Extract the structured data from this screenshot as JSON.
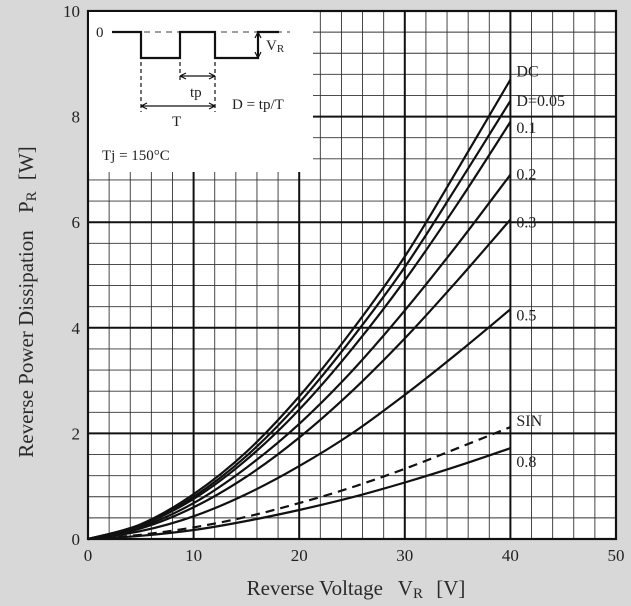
{
  "chart_data": {
    "type": "line",
    "xlabel_parts": [
      "Reverse Voltage",
      "V",
      "R",
      "[V]"
    ],
    "ylabel_parts": [
      "Reverse Power Dissipation",
      "P",
      "R",
      "[W]"
    ],
    "xlim": [
      0,
      50
    ],
    "ylim": [
      0,
      10
    ],
    "x_major_ticks": [
      0,
      10,
      20,
      30,
      40,
      50
    ],
    "y_major_ticks": [
      0,
      2,
      4,
      6,
      8,
      10
    ],
    "x_tick_labels": [
      "0",
      "10",
      "20",
      "30",
      "40",
      "50"
    ],
    "y_tick_labels": [
      "0",
      "2",
      "4",
      "6",
      "8",
      "10"
    ],
    "grid": true,
    "x": [
      0,
      5,
      10,
      15,
      20,
      25,
      30,
      35,
      40
    ],
    "series": [
      {
        "name": "DC",
        "dashed": false,
        "values": [
          0,
          0.28,
          0.85,
          1.65,
          2.7,
          3.95,
          5.35,
          7.0,
          8.7
        ]
      },
      {
        "name": "D=0.05",
        "dashed": false,
        "values": [
          0,
          0.27,
          0.8,
          1.57,
          2.58,
          3.8,
          5.15,
          6.7,
          8.3
        ]
      },
      {
        "name": "0.1",
        "dashed": false,
        "values": [
          0,
          0.26,
          0.76,
          1.5,
          2.45,
          3.6,
          4.9,
          6.35,
          7.9
        ]
      },
      {
        "name": "0.2",
        "dashed": false,
        "values": [
          0,
          0.23,
          0.68,
          1.35,
          2.18,
          3.18,
          4.33,
          5.58,
          6.9
        ]
      },
      {
        "name": "0.3",
        "dashed": false,
        "values": [
          0,
          0.2,
          0.6,
          1.18,
          1.92,
          2.8,
          3.8,
          4.9,
          6.05
        ]
      },
      {
        "name": "0.5",
        "dashed": false,
        "values": [
          0,
          0.15,
          0.43,
          0.85,
          1.38,
          2.0,
          2.73,
          3.52,
          4.35
        ]
      },
      {
        "name": "SIN",
        "dashed": true,
        "values": [
          0,
          0.08,
          0.22,
          0.42,
          0.68,
          0.98,
          1.33,
          1.72,
          2.12
        ]
      },
      {
        "name": "0.8",
        "dashed": false,
        "values": [
          0,
          0.06,
          0.17,
          0.34,
          0.55,
          0.79,
          1.07,
          1.38,
          1.72
        ]
      }
    ]
  },
  "inset": {
    "zero_label": "0",
    "vr_label": [
      "V",
      "R"
    ],
    "tp_label": "tp",
    "t_label": "T",
    "duty_label": "D = tp/T",
    "tj_label": "Tj = 150°C"
  },
  "colors": {
    "background": "#d8d8d8",
    "plot_area": "#ffffff",
    "ink": "#111111",
    "grid": "#1a1a1a"
  }
}
